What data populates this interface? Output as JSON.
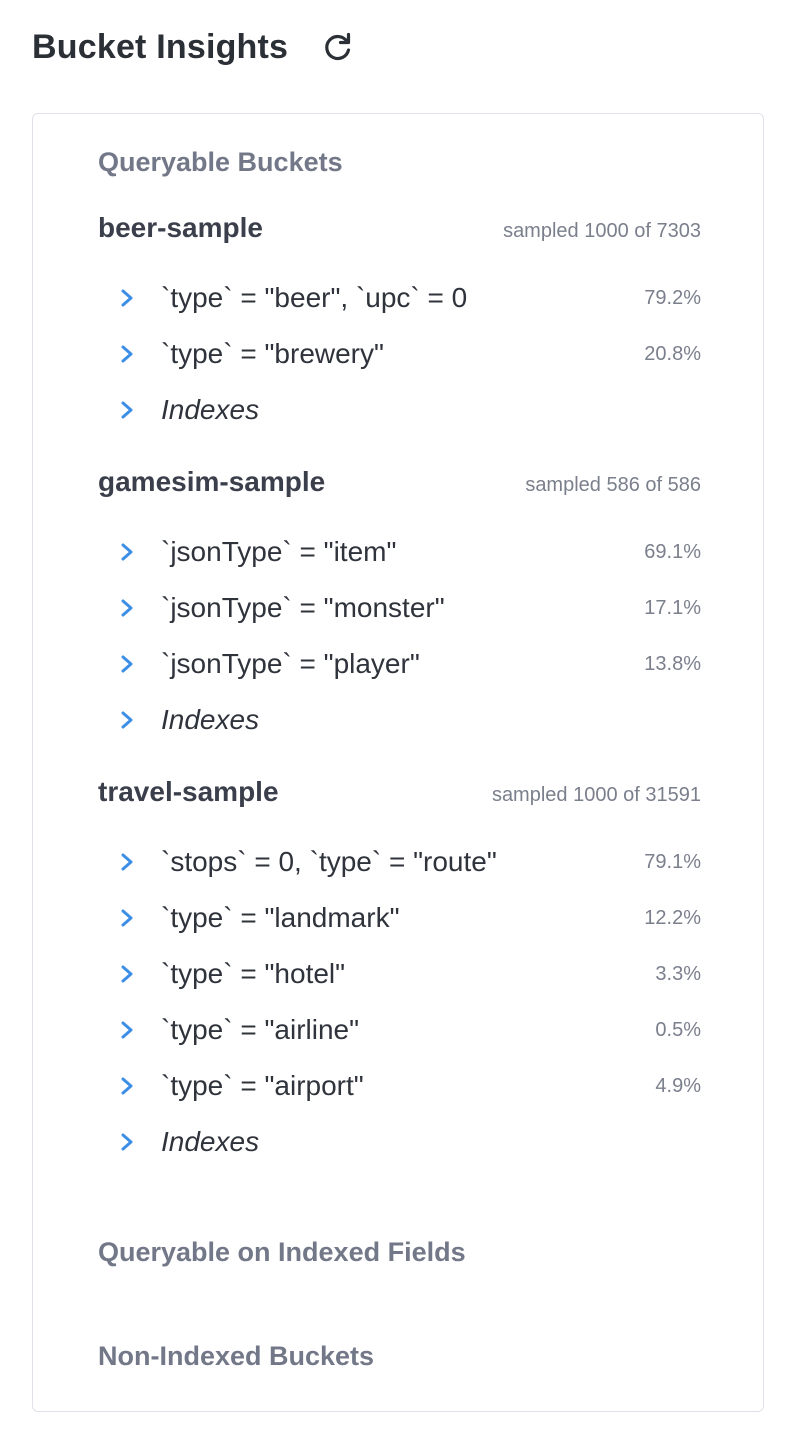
{
  "header": {
    "title": "Bucket Insights",
    "refresh_icon": "refresh-icon"
  },
  "sections": {
    "queryable": "Queryable Buckets",
    "indexed_fields": "Queryable on Indexed Fields",
    "non_indexed": "Non-Indexed Buckets"
  },
  "buckets": [
    {
      "name": "beer-sample",
      "sampled": "sampled 1000 of 7303",
      "flavors": [
        {
          "label": "`type` = \"beer\", `upc` = 0",
          "pct": "79.2%"
        },
        {
          "label": "`type` = \"brewery\"",
          "pct": "20.8%"
        }
      ],
      "indexes_label": "Indexes"
    },
    {
      "name": "gamesim-sample",
      "sampled": "sampled 586 of 586",
      "flavors": [
        {
          "label": "`jsonType` = \"item\"",
          "pct": "69.1%"
        },
        {
          "label": "`jsonType` = \"monster\"",
          "pct": "17.1%"
        },
        {
          "label": "`jsonType` = \"player\"",
          "pct": "13.8%"
        }
      ],
      "indexes_label": "Indexes"
    },
    {
      "name": "travel-sample",
      "sampled": "sampled 1000 of 31591",
      "flavors": [
        {
          "label": "`stops` = 0, `type` = \"route\"",
          "pct": "79.1%"
        },
        {
          "label": "`type` = \"landmark\"",
          "pct": "12.2%"
        },
        {
          "label": "`type` = \"hotel\"",
          "pct": "3.3%"
        },
        {
          "label": "`type` = \"airline\"",
          "pct": "0.5%"
        },
        {
          "label": "`type` = \"airport\"",
          "pct": "4.9%"
        }
      ],
      "indexes_label": "Indexes"
    }
  ],
  "colors": {
    "accent": "#3d8fe6",
    "section_title": "#737888",
    "text": "#2f333b",
    "muted": "#7a7f8c",
    "border": "#dfe2e8"
  }
}
